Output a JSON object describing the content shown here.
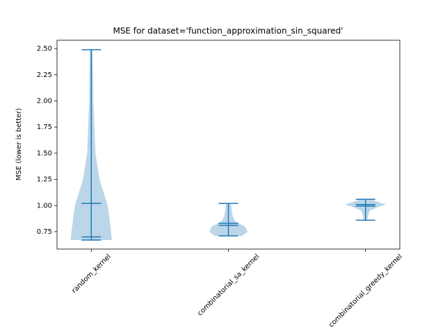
{
  "chart_data": {
    "type": "violin",
    "title": "MSE for dataset='function_approximation_sin_squared'",
    "ylabel": "MSE (lower is better)",
    "categories": [
      "random_kernel",
      "combinatorial_sa_kernel",
      "combinatorial_greedy_kernel"
    ],
    "color": "#1f77b4",
    "ylim": [
      0.584,
      2.58
    ],
    "yticks": [
      0.75,
      1.0,
      1.25,
      1.5,
      1.75,
      2.0,
      2.25,
      2.5
    ],
    "ytick_labels": [
      "0.75",
      "1.00",
      "1.25",
      "1.50",
      "1.75",
      "2.00",
      "2.25",
      "2.50"
    ],
    "xlim": [
      0.75,
      3.25
    ],
    "mins": [
      0.67,
      0.71,
      0.86
    ],
    "maxs": [
      2.49,
      1.02,
      1.06
    ],
    "means": [
      1.02,
      0.83,
      1.01
    ],
    "medians": [
      0.7,
      0.81,
      0.995
    ],
    "density_y": [
      [
        0.67,
        0.8,
        1.0,
        1.25,
        1.5,
        2.0,
        2.49
      ],
      [
        0.71,
        0.75,
        0.8,
        0.85,
        0.9,
        1.0,
        1.02
      ],
      [
        0.86,
        0.95,
        0.99,
        1.01,
        1.03,
        1.06
      ]
    ],
    "density_halfwidth": [
      [
        0.15,
        0.14,
        0.12,
        0.06,
        0.03,
        0.015,
        0.01
      ],
      [
        0.1,
        0.14,
        0.12,
        0.05,
        0.03,
        0.02,
        0.015
      ],
      [
        0.01,
        0.03,
        0.1,
        0.15,
        0.1,
        0.04
      ]
    ]
  }
}
